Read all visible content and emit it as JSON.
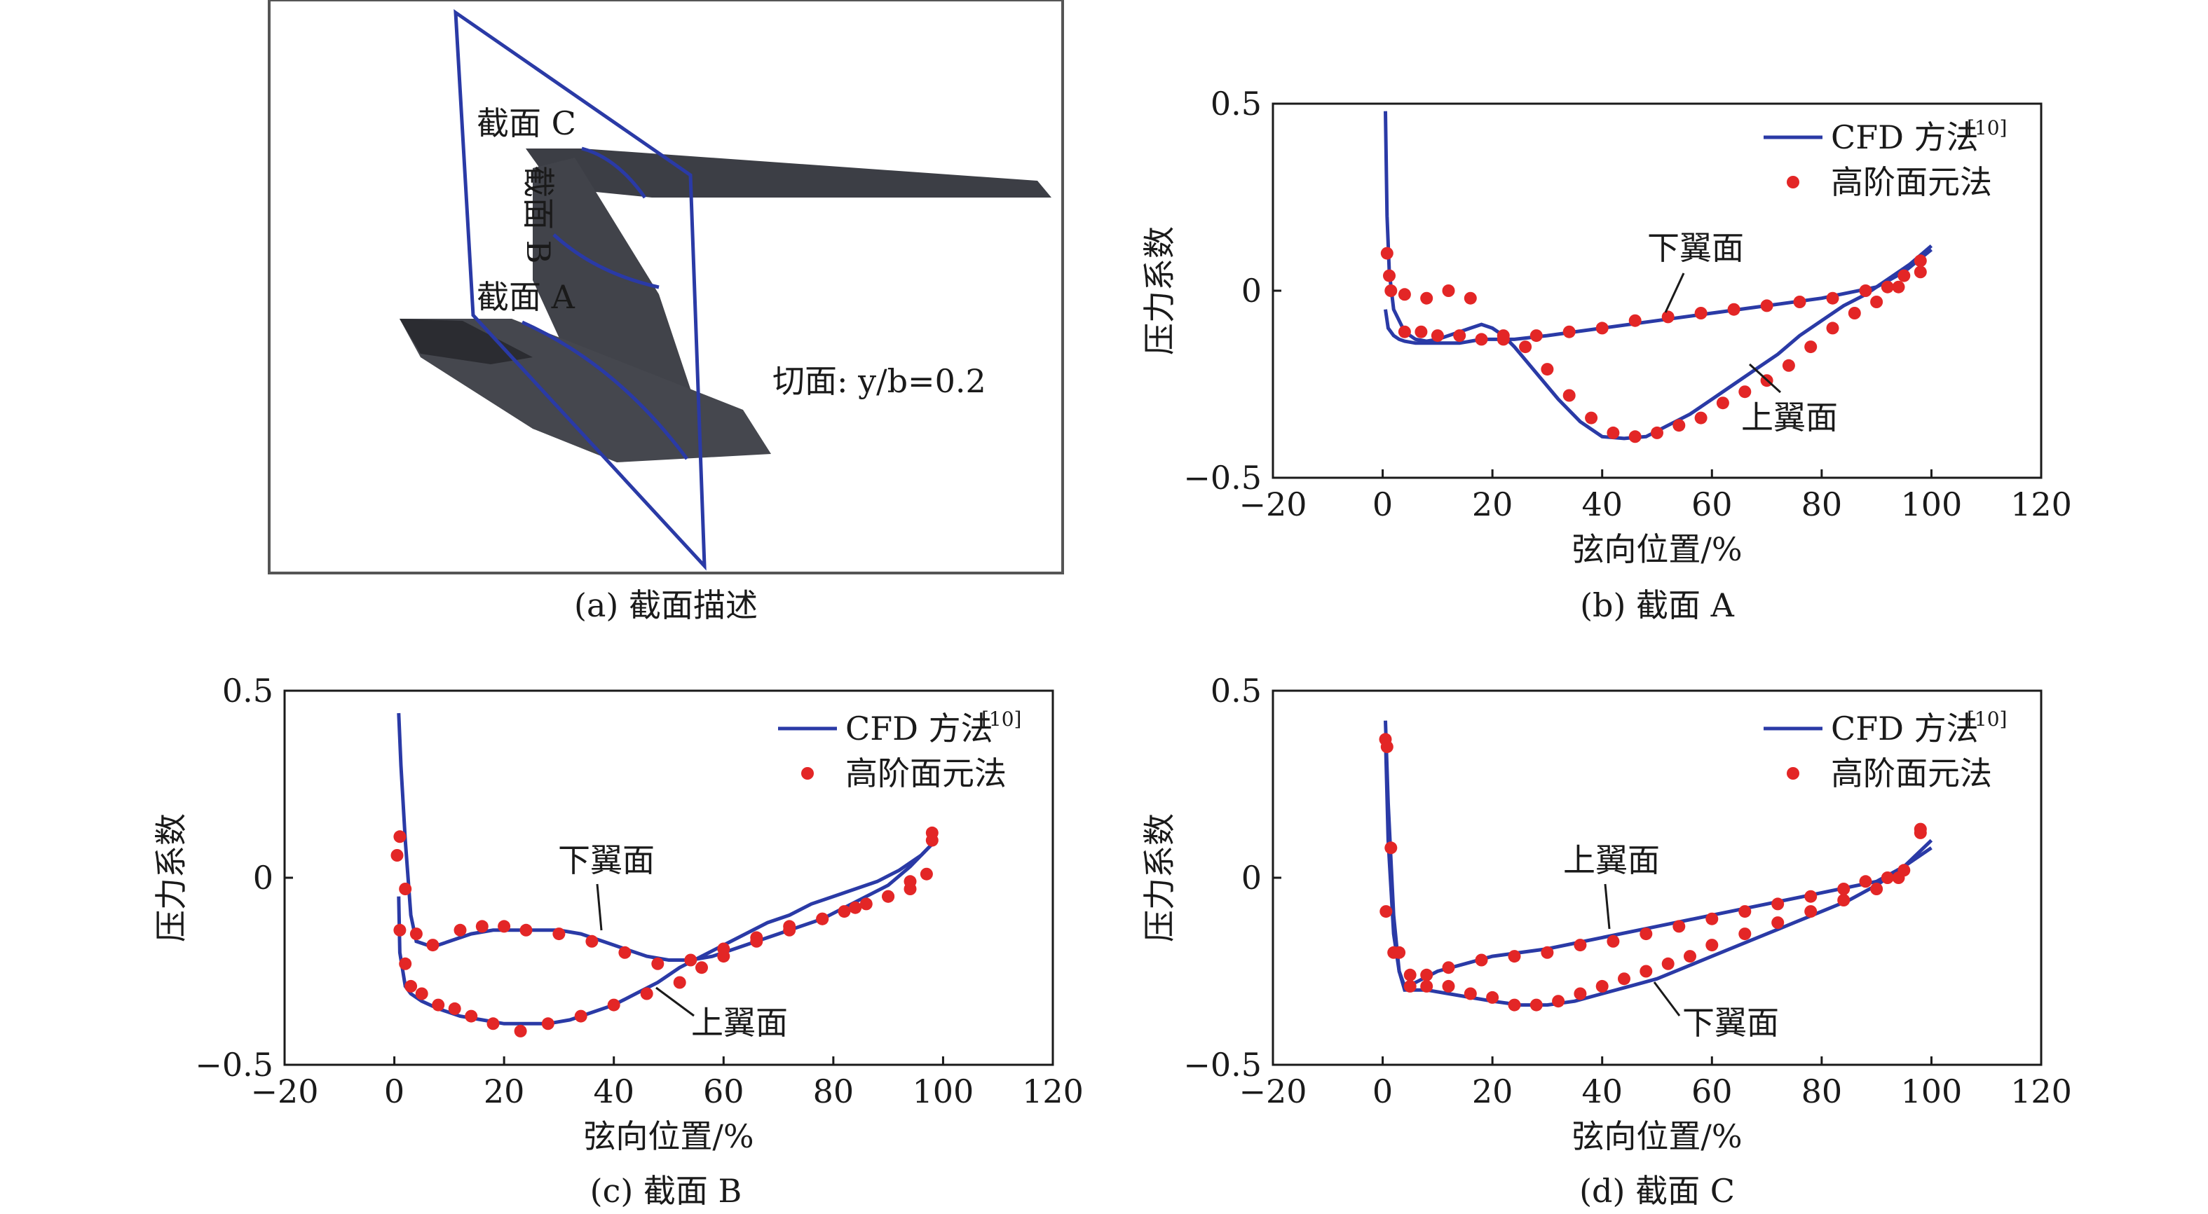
{
  "figure_a": {
    "caption": "(a) 截面描述",
    "labels": [
      "截面 C",
      "截面 B",
      "截面 A"
    ],
    "plane_label": "切面: y/b=0.2"
  },
  "chart_data": [
    {
      "id": "b",
      "type": "line",
      "caption": "(b) 截面 A",
      "xlabel": "弦向位置/%",
      "ylabel": "压力系数",
      "xlim": [
        -20,
        120
      ],
      "ylim": [
        -0.5,
        0.5
      ],
      "xticks": [
        "−20",
        "0",
        "20",
        "40",
        "60",
        "80",
        "100",
        "120"
      ],
      "yticks": [
        "0.5",
        "0",
        "−0.5"
      ],
      "legend": [
        "CFD 方法",
        "[10]",
        "高阶面元法"
      ],
      "annotations": [
        "下翼面",
        "上翼面"
      ],
      "series": [
        {
          "name": "CFD 方法 [10] 上翼面",
          "x": [
            0.5,
            0.8,
            1.2,
            2,
            3,
            4,
            6,
            8,
            10,
            12,
            14,
            16,
            18,
            20,
            22,
            24,
            28,
            32,
            36,
            40,
            44,
            48,
            52,
            56,
            60,
            64,
            68,
            72,
            76,
            80,
            84,
            88,
            92,
            96,
            100
          ],
          "y": [
            0.48,
            0.2,
            0.05,
            -0.05,
            -0.08,
            -0.11,
            -0.13,
            -0.135,
            -0.13,
            -0.12,
            -0.11,
            -0.1,
            -0.09,
            -0.1,
            -0.12,
            -0.15,
            -0.22,
            -0.29,
            -0.35,
            -0.39,
            -0.395,
            -0.39,
            -0.36,
            -0.33,
            -0.29,
            -0.25,
            -0.21,
            -0.17,
            -0.12,
            -0.08,
            -0.04,
            -0.01,
            0.03,
            0.07,
            0.12
          ]
        },
        {
          "name": "CFD 方法 [10] 下翼面",
          "x": [
            0.5,
            1,
            2,
            3,
            4,
            6,
            8,
            10,
            12,
            14,
            16,
            18,
            20,
            22,
            24,
            30,
            40,
            50,
            60,
            70,
            80,
            90,
            95,
            100
          ],
          "y": [
            -0.05,
            -0.1,
            -0.12,
            -0.13,
            -0.135,
            -0.14,
            -0.14,
            -0.14,
            -0.14,
            -0.14,
            -0.135,
            -0.13,
            -0.13,
            -0.13,
            -0.13,
            -0.12,
            -0.1,
            -0.08,
            -0.06,
            -0.04,
            -0.02,
            0.01,
            0.05,
            0.11
          ]
        },
        {
          "name": "高阶面元法",
          "x": [
            0.8,
            1.2,
            1.5,
            4,
            8,
            12,
            16,
            22,
            26,
            30,
            34,
            38,
            42,
            46,
            50,
            54,
            58,
            62,
            66,
            70,
            74,
            78,
            82,
            86,
            90,
            94,
            98,
            4,
            7,
            10,
            14,
            18,
            22,
            28,
            34,
            40,
            46,
            52,
            58,
            64,
            70,
            76,
            82,
            88,
            92,
            95,
            98
          ],
          "y": [
            0.1,
            0.04,
            0.0,
            -0.01,
            -0.02,
            0.0,
            -0.02,
            -0.12,
            -0.15,
            -0.21,
            -0.28,
            -0.34,
            -0.38,
            -0.39,
            -0.38,
            -0.36,
            -0.34,
            -0.3,
            -0.27,
            -0.24,
            -0.2,
            -0.15,
            -0.1,
            -0.06,
            -0.03,
            0.01,
            0.05,
            -0.11,
            -0.11,
            -0.12,
            -0.12,
            -0.13,
            -0.13,
            -0.12,
            -0.11,
            -0.1,
            -0.08,
            -0.07,
            -0.06,
            -0.05,
            -0.04,
            -0.03,
            -0.02,
            0.0,
            0.01,
            0.04,
            0.08
          ]
        }
      ]
    },
    {
      "id": "c",
      "type": "line",
      "caption": "(c) 截面 B",
      "xlabel": "弦向位置/%",
      "ylabel": "压力系数",
      "xlim": [
        -20,
        120
      ],
      "ylim": [
        -0.5,
        0.5
      ],
      "xticks": [
        "−20",
        "0",
        "20",
        "40",
        "60",
        "80",
        "100",
        "120"
      ],
      "yticks": [
        "0.5",
        "0",
        "−0.5"
      ],
      "legend": [
        "CFD 方法",
        "[10]",
        "高阶面元法"
      ],
      "annotations": [
        "下翼面",
        "上翼面"
      ],
      "series": [
        {
          "name": "CFD 方法 [10] 下翼面",
          "x": [
            0.8,
            1.2,
            2,
            3,
            4,
            6,
            8,
            10,
            14,
            18,
            22,
            26,
            30,
            34,
            38,
            42,
            46,
            50,
            54,
            58,
            62,
            66,
            70,
            74,
            78,
            82,
            86,
            90,
            94,
            98
          ],
          "y": [
            0.44,
            0.3,
            0.1,
            -0.1,
            -0.17,
            -0.18,
            -0.18,
            -0.17,
            -0.15,
            -0.14,
            -0.14,
            -0.14,
            -0.14,
            -0.15,
            -0.17,
            -0.19,
            -0.21,
            -0.22,
            -0.22,
            -0.21,
            -0.19,
            -0.17,
            -0.15,
            -0.13,
            -0.11,
            -0.08,
            -0.05,
            -0.02,
            0.03,
            0.09
          ]
        },
        {
          "name": "CFD 方法 [10] 上翼面",
          "x": [
            0.8,
            1,
            2,
            3,
            5,
            8,
            12,
            16,
            20,
            24,
            28,
            32,
            36,
            40,
            44,
            48,
            52,
            56,
            60,
            64,
            68,
            72,
            76,
            80,
            84,
            88,
            92,
            96,
            98
          ],
          "y": [
            -0.05,
            -0.2,
            -0.29,
            -0.31,
            -0.33,
            -0.35,
            -0.37,
            -0.38,
            -0.39,
            -0.39,
            -0.39,
            -0.38,
            -0.36,
            -0.34,
            -0.31,
            -0.28,
            -0.24,
            -0.21,
            -0.18,
            -0.15,
            -0.12,
            -0.1,
            -0.07,
            -0.05,
            -0.03,
            -0.01,
            0.02,
            0.06,
            0.09
          ]
        },
        {
          "name": "高阶面元法",
          "x": [
            0.5,
            1,
            2,
            4,
            7,
            12,
            16,
            20,
            24,
            30,
            36,
            42,
            48,
            54,
            60,
            66,
            72,
            78,
            84,
            90,
            94,
            98,
            1,
            2,
            3,
            5,
            8,
            11,
            14,
            18,
            23,
            28,
            34,
            40,
            46,
            52,
            56,
            60,
            66,
            72,
            78,
            82,
            86,
            90,
            94,
            97,
            98
          ],
          "y": [
            0.06,
            0.11,
            -0.03,
            -0.15,
            -0.18,
            -0.14,
            -0.13,
            -0.13,
            -0.14,
            -0.15,
            -0.17,
            -0.2,
            -0.23,
            -0.22,
            -0.19,
            -0.16,
            -0.13,
            -0.11,
            -0.08,
            -0.05,
            -0.01,
            0.1,
            -0.14,
            -0.23,
            -0.29,
            -0.31,
            -0.34,
            -0.35,
            -0.37,
            -0.39,
            -0.41,
            -0.39,
            -0.37,
            -0.34,
            -0.31,
            -0.28,
            -0.24,
            -0.21,
            -0.17,
            -0.14,
            -0.11,
            -0.09,
            -0.07,
            -0.05,
            -0.03,
            0.01,
            0.12
          ]
        }
      ]
    },
    {
      "id": "d",
      "type": "line",
      "caption": "(d) 截面 C",
      "xlabel": "弦向位置/%",
      "ylabel": "压力系数",
      "xlim": [
        -20,
        120
      ],
      "ylim": [
        -0.5,
        0.5
      ],
      "xticks": [
        "−20",
        "0",
        "20",
        "40",
        "60",
        "80",
        "100",
        "120"
      ],
      "yticks": [
        "0.5",
        "0",
        "−0.5"
      ],
      "legend": [
        "CFD 方法",
        "[10]",
        "高阶面元法"
      ],
      "annotations": [
        "上翼面",
        "下翼面"
      ],
      "series": [
        {
          "name": "CFD 方法 [10] 下翼面",
          "x": [
            0.5,
            1,
            2,
            3,
            4,
            6,
            8,
            12,
            16,
            20,
            25,
            30,
            35,
            40,
            45,
            50,
            55,
            60,
            65,
            70,
            75,
            80,
            85,
            90,
            95,
            100
          ],
          "y": [
            0.42,
            0.2,
            -0.1,
            -0.25,
            -0.3,
            -0.3,
            -0.3,
            -0.31,
            -0.32,
            -0.33,
            -0.34,
            -0.34,
            -0.33,
            -0.31,
            -0.29,
            -0.27,
            -0.24,
            -0.21,
            -0.18,
            -0.15,
            -0.12,
            -0.09,
            -0.06,
            -0.02,
            0.03,
            0.1
          ]
        },
        {
          "name": "CFD 方法 [10] 上翼面",
          "x": [
            0.5,
            1,
            2,
            3,
            4,
            6,
            10,
            15,
            20,
            30,
            40,
            50,
            60,
            70,
            80,
            90,
            95,
            100
          ],
          "y": [
            0.38,
            0.1,
            -0.15,
            -0.25,
            -0.29,
            -0.28,
            -0.25,
            -0.23,
            -0.21,
            -0.19,
            -0.16,
            -0.13,
            -0.1,
            -0.07,
            -0.04,
            -0.01,
            0.03,
            0.08
          ]
        },
        {
          "name": "高阶面元法",
          "x": [
            0.5,
            0.8,
            1.5,
            3,
            5,
            8,
            12,
            16,
            20,
            24,
            28,
            32,
            36,
            40,
            44,
            48,
            52,
            56,
            60,
            66,
            72,
            78,
            84,
            90,
            94,
            98,
            0.6,
            2,
            5,
            8,
            12,
            18,
            24,
            30,
            36,
            42,
            48,
            54,
            60,
            66,
            72,
            78,
            84,
            88,
            92,
            95,
            98
          ],
          "y": [
            0.37,
            0.35,
            0.08,
            -0.2,
            -0.29,
            -0.29,
            -0.29,
            -0.31,
            -0.32,
            -0.34,
            -0.34,
            -0.33,
            -0.31,
            -0.29,
            -0.27,
            -0.25,
            -0.23,
            -0.21,
            -0.18,
            -0.15,
            -0.12,
            -0.09,
            -0.06,
            -0.03,
            0.0,
            0.13,
            -0.09,
            -0.2,
            -0.26,
            -0.26,
            -0.24,
            -0.22,
            -0.21,
            -0.2,
            -0.18,
            -0.17,
            -0.15,
            -0.13,
            -0.11,
            -0.09,
            -0.07,
            -0.05,
            -0.03,
            -0.01,
            0.0,
            0.02,
            0.12
          ]
        }
      ]
    }
  ]
}
